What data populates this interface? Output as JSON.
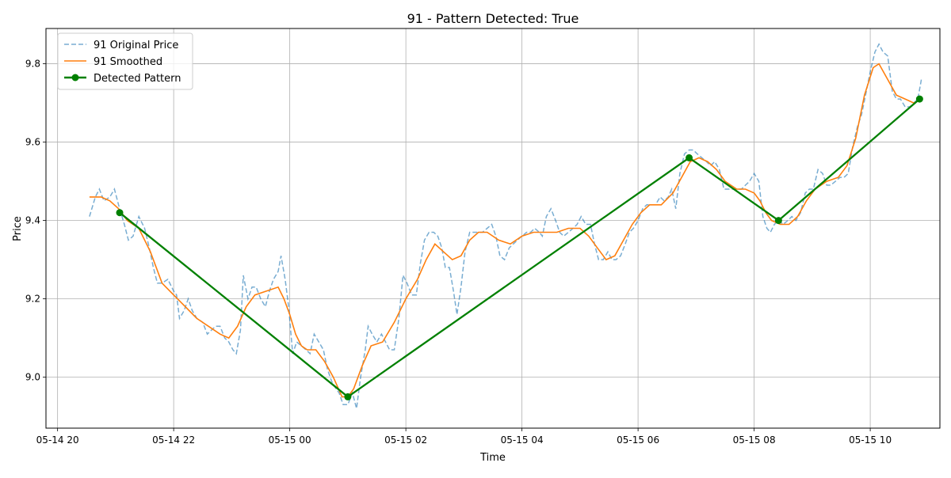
{
  "chart_data": {
    "type": "line",
    "title": "91 - Pattern Detected: True",
    "xlabel": "Time",
    "ylabel": "Price",
    "x_unit": "hours from 2024-05-14 20:00",
    "xlim": [
      -0.2,
      15.2
    ],
    "ylim": [
      8.87,
      9.89
    ],
    "grid": true,
    "legend_position": "top-left",
    "x_ticks": [
      {
        "value": 0,
        "label": "05-14 20"
      },
      {
        "value": 2,
        "label": "05-14 22"
      },
      {
        "value": 4,
        "label": "05-15 00"
      },
      {
        "value": 6,
        "label": "05-15 02"
      },
      {
        "value": 8,
        "label": "05-15 04"
      },
      {
        "value": 10,
        "label": "05-15 06"
      },
      {
        "value": 12,
        "label": "05-15 08"
      },
      {
        "value": 14,
        "label": "05-15 10"
      }
    ],
    "y_ticks": [
      {
        "value": 9.0,
        "label": "9.0"
      },
      {
        "value": 9.2,
        "label": "9.2"
      },
      {
        "value": 9.4,
        "label": "9.4"
      },
      {
        "value": 9.6,
        "label": "9.6"
      },
      {
        "value": 9.8,
        "label": "9.8"
      }
    ],
    "series": [
      {
        "name": "91 Original Price",
        "color": "#1f77b4",
        "style": "dashed",
        "points": [
          [
            0.55,
            9.41
          ],
          [
            0.65,
            9.46
          ],
          [
            0.72,
            9.48
          ],
          [
            0.8,
            9.45
          ],
          [
            0.9,
            9.46
          ],
          [
            0.98,
            9.48
          ],
          [
            1.05,
            9.44
          ],
          [
            1.15,
            9.39
          ],
          [
            1.22,
            9.35
          ],
          [
            1.3,
            9.36
          ],
          [
            1.4,
            9.41
          ],
          [
            1.5,
            9.38
          ],
          [
            1.58,
            9.33
          ],
          [
            1.65,
            9.28
          ],
          [
            1.72,
            9.24
          ],
          [
            1.8,
            9.24
          ],
          [
            1.9,
            9.25
          ],
          [
            2.0,
            9.22
          ],
          [
            2.05,
            9.21
          ],
          [
            2.1,
            9.15
          ],
          [
            2.18,
            9.17
          ],
          [
            2.25,
            9.2
          ],
          [
            2.32,
            9.17
          ],
          [
            2.4,
            9.15
          ],
          [
            2.5,
            9.14
          ],
          [
            2.58,
            9.11
          ],
          [
            2.65,
            9.12
          ],
          [
            2.72,
            9.13
          ],
          [
            2.8,
            9.13
          ],
          [
            2.88,
            9.1
          ],
          [
            2.95,
            9.09
          ],
          [
            3.02,
            9.07
          ],
          [
            3.08,
            9.06
          ],
          [
            3.15,
            9.12
          ],
          [
            3.2,
            9.26
          ],
          [
            3.28,
            9.2
          ],
          [
            3.35,
            9.23
          ],
          [
            3.42,
            9.23
          ],
          [
            3.5,
            9.2
          ],
          [
            3.58,
            9.18
          ],
          [
            3.65,
            9.22
          ],
          [
            3.72,
            9.25
          ],
          [
            3.8,
            9.27
          ],
          [
            3.85,
            9.31
          ],
          [
            3.92,
            9.25
          ],
          [
            3.98,
            9.18
          ],
          [
            4.05,
            9.06
          ],
          [
            4.12,
            9.09
          ],
          [
            4.2,
            9.08
          ],
          [
            4.28,
            9.07
          ],
          [
            4.35,
            9.06
          ],
          [
            4.42,
            9.11
          ],
          [
            4.5,
            9.09
          ],
          [
            4.58,
            9.07
          ],
          [
            4.65,
            9.02
          ],
          [
            4.72,
            8.99
          ],
          [
            4.8,
            8.97
          ],
          [
            4.85,
            8.96
          ],
          [
            4.92,
            8.93
          ],
          [
            5.0,
            8.93
          ],
          [
            5.08,
            8.96
          ],
          [
            5.15,
            8.92
          ],
          [
            5.22,
            9.0
          ],
          [
            5.3,
            9.07
          ],
          [
            5.35,
            9.13
          ],
          [
            5.42,
            9.11
          ],
          [
            5.5,
            9.09
          ],
          [
            5.58,
            9.11
          ],
          [
            5.65,
            9.09
          ],
          [
            5.72,
            9.07
          ],
          [
            5.8,
            9.07
          ],
          [
            5.88,
            9.15
          ],
          [
            5.95,
            9.26
          ],
          [
            6.02,
            9.24
          ],
          [
            6.1,
            9.21
          ],
          [
            6.18,
            9.21
          ],
          [
            6.25,
            9.29
          ],
          [
            6.32,
            9.35
          ],
          [
            6.4,
            9.37
          ],
          [
            6.48,
            9.37
          ],
          [
            6.55,
            9.36
          ],
          [
            6.62,
            9.33
          ],
          [
            6.68,
            9.28
          ],
          [
            6.75,
            9.28
          ],
          [
            6.82,
            9.22
          ],
          [
            6.88,
            9.16
          ],
          [
            6.95,
            9.23
          ],
          [
            7.02,
            9.32
          ],
          [
            7.1,
            9.37
          ],
          [
            7.18,
            9.37
          ],
          [
            7.25,
            9.37
          ],
          [
            7.32,
            9.37
          ],
          [
            7.4,
            9.38
          ],
          [
            7.48,
            9.39
          ],
          [
            7.55,
            9.36
          ],
          [
            7.62,
            9.31
          ],
          [
            7.7,
            9.3
          ],
          [
            7.78,
            9.33
          ],
          [
            7.85,
            9.34
          ],
          [
            7.92,
            9.35
          ],
          [
            8.0,
            9.36
          ],
          [
            8.08,
            9.37
          ],
          [
            8.15,
            9.37
          ],
          [
            8.22,
            9.38
          ],
          [
            8.3,
            9.37
          ],
          [
            8.35,
            9.36
          ],
          [
            8.42,
            9.41
          ],
          [
            8.5,
            9.43
          ],
          [
            8.58,
            9.4
          ],
          [
            8.65,
            9.37
          ],
          [
            8.72,
            9.36
          ],
          [
            8.8,
            9.37
          ],
          [
            8.88,
            9.38
          ],
          [
            8.95,
            9.39
          ],
          [
            9.02,
            9.41
          ],
          [
            9.1,
            9.39
          ],
          [
            9.18,
            9.39
          ],
          [
            9.25,
            9.34
          ],
          [
            9.32,
            9.3
          ],
          [
            9.4,
            9.3
          ],
          [
            9.48,
            9.32
          ],
          [
            9.55,
            9.3
          ],
          [
            9.62,
            9.3
          ],
          [
            9.7,
            9.31
          ],
          [
            9.78,
            9.34
          ],
          [
            9.85,
            9.37
          ],
          [
            9.92,
            9.38
          ],
          [
            10.0,
            9.4
          ],
          [
            10.08,
            9.43
          ],
          [
            10.15,
            9.44
          ],
          [
            10.22,
            9.44
          ],
          [
            10.3,
            9.44
          ],
          [
            10.38,
            9.46
          ],
          [
            10.45,
            9.45
          ],
          [
            10.52,
            9.46
          ],
          [
            10.58,
            9.48
          ],
          [
            10.65,
            9.43
          ],
          [
            10.72,
            9.52
          ],
          [
            10.8,
            9.57
          ],
          [
            10.88,
            9.58
          ],
          [
            10.95,
            9.58
          ],
          [
            11.02,
            9.57
          ],
          [
            11.1,
            9.56
          ],
          [
            11.18,
            9.55
          ],
          [
            11.25,
            9.54
          ],
          [
            11.32,
            9.55
          ],
          [
            11.4,
            9.53
          ],
          [
            11.48,
            9.48
          ],
          [
            11.55,
            9.48
          ],
          [
            11.62,
            9.48
          ],
          [
            11.7,
            9.48
          ],
          [
            11.78,
            9.48
          ],
          [
            11.85,
            9.49
          ],
          [
            11.92,
            9.5
          ],
          [
            12.0,
            9.52
          ],
          [
            12.08,
            9.5
          ],
          [
            12.15,
            9.41
          ],
          [
            12.22,
            9.38
          ],
          [
            12.28,
            9.37
          ],
          [
            12.35,
            9.39
          ],
          [
            12.42,
            9.4
          ],
          [
            12.5,
            9.39
          ],
          [
            12.58,
            9.4
          ],
          [
            12.65,
            9.41
          ],
          [
            12.72,
            9.4
          ],
          [
            12.8,
            9.42
          ],
          [
            12.88,
            9.47
          ],
          [
            12.95,
            9.48
          ],
          [
            13.02,
            9.48
          ],
          [
            13.1,
            9.53
          ],
          [
            13.18,
            9.52
          ],
          [
            13.25,
            9.49
          ],
          [
            13.32,
            9.49
          ],
          [
            13.4,
            9.5
          ],
          [
            13.48,
            9.51
          ],
          [
            13.55,
            9.51
          ],
          [
            13.62,
            9.52
          ],
          [
            13.7,
            9.59
          ],
          [
            13.78,
            9.64
          ],
          [
            13.85,
            9.67
          ],
          [
            13.92,
            9.72
          ],
          [
            14.0,
            9.78
          ],
          [
            14.08,
            9.83
          ],
          [
            14.15,
            9.85
          ],
          [
            14.22,
            9.83
          ],
          [
            14.3,
            9.82
          ],
          [
            14.38,
            9.73
          ],
          [
            14.45,
            9.71
          ],
          [
            14.52,
            9.71
          ],
          [
            14.6,
            9.69
          ],
          [
            14.68,
            9.69
          ],
          [
            14.75,
            9.7
          ],
          [
            14.82,
            9.71
          ],
          [
            14.88,
            9.76
          ]
        ]
      },
      {
        "name": "91 Smoothed",
        "color": "#ff7f0e",
        "style": "solid",
        "points": [
          [
            0.55,
            9.46
          ],
          [
            0.75,
            9.46
          ],
          [
            0.9,
            9.45
          ],
          [
            1.05,
            9.43
          ],
          [
            1.2,
            9.4
          ],
          [
            1.4,
            9.38
          ],
          [
            1.6,
            9.32
          ],
          [
            1.8,
            9.24
          ],
          [
            2.0,
            9.21
          ],
          [
            2.2,
            9.18
          ],
          [
            2.4,
            9.15
          ],
          [
            2.6,
            9.13
          ],
          [
            2.8,
            9.11
          ],
          [
            2.95,
            9.1
          ],
          [
            3.1,
            9.13
          ],
          [
            3.25,
            9.18
          ],
          [
            3.4,
            9.21
          ],
          [
            3.6,
            9.22
          ],
          [
            3.8,
            9.23
          ],
          [
            3.9,
            9.2
          ],
          [
            4.0,
            9.16
          ],
          [
            4.1,
            9.11
          ],
          [
            4.2,
            9.08
          ],
          [
            4.3,
            9.07
          ],
          [
            4.45,
            9.07
          ],
          [
            4.6,
            9.04
          ],
          [
            4.75,
            9.0
          ],
          [
            4.9,
            8.95
          ],
          [
            5.0,
            8.95
          ],
          [
            5.1,
            8.97
          ],
          [
            5.25,
            9.03
          ],
          [
            5.4,
            9.08
          ],
          [
            5.6,
            9.09
          ],
          [
            5.8,
            9.14
          ],
          [
            6.0,
            9.2
          ],
          [
            6.2,
            9.25
          ],
          [
            6.35,
            9.3
          ],
          [
            6.5,
            9.34
          ],
          [
            6.65,
            9.32
          ],
          [
            6.8,
            9.3
          ],
          [
            6.95,
            9.31
          ],
          [
            7.1,
            9.35
          ],
          [
            7.25,
            9.37
          ],
          [
            7.4,
            9.37
          ],
          [
            7.6,
            9.35
          ],
          [
            7.8,
            9.34
          ],
          [
            8.0,
            9.36
          ],
          [
            8.2,
            9.37
          ],
          [
            8.4,
            9.37
          ],
          [
            8.6,
            9.37
          ],
          [
            8.8,
            9.38
          ],
          [
            9.0,
            9.38
          ],
          [
            9.15,
            9.36
          ],
          [
            9.3,
            9.33
          ],
          [
            9.45,
            9.3
          ],
          [
            9.6,
            9.31
          ],
          [
            9.75,
            9.35
          ],
          [
            9.9,
            9.39
          ],
          [
            10.05,
            9.42
          ],
          [
            10.2,
            9.44
          ],
          [
            10.4,
            9.44
          ],
          [
            10.6,
            9.47
          ],
          [
            10.75,
            9.51
          ],
          [
            10.9,
            9.55
          ],
          [
            11.05,
            9.56
          ],
          [
            11.2,
            9.55
          ],
          [
            11.35,
            9.53
          ],
          [
            11.5,
            9.5
          ],
          [
            11.7,
            9.48
          ],
          [
            11.85,
            9.48
          ],
          [
            12.0,
            9.47
          ],
          [
            12.1,
            9.45
          ],
          [
            12.2,
            9.42
          ],
          [
            12.3,
            9.4
          ],
          [
            12.45,
            9.39
          ],
          [
            12.6,
            9.39
          ],
          [
            12.75,
            9.41
          ],
          [
            12.9,
            9.45
          ],
          [
            13.05,
            9.48
          ],
          [
            13.25,
            9.5
          ],
          [
            13.45,
            9.51
          ],
          [
            13.6,
            9.54
          ],
          [
            13.75,
            9.61
          ],
          [
            13.9,
            9.72
          ],
          [
            14.05,
            9.79
          ],
          [
            14.15,
            9.8
          ],
          [
            14.3,
            9.76
          ],
          [
            14.45,
            9.72
          ],
          [
            14.6,
            9.71
          ],
          [
            14.75,
            9.7
          ],
          [
            14.88,
            9.71
          ]
        ]
      },
      {
        "name": "Detected Pattern",
        "color": "#008000",
        "style": "solid-markers",
        "points": [
          [
            1.07,
            9.42
          ],
          [
            5.0,
            8.95
          ],
          [
            10.88,
            9.56
          ],
          [
            12.42,
            9.4
          ],
          [
            14.85,
            9.71
          ]
        ]
      }
    ]
  }
}
